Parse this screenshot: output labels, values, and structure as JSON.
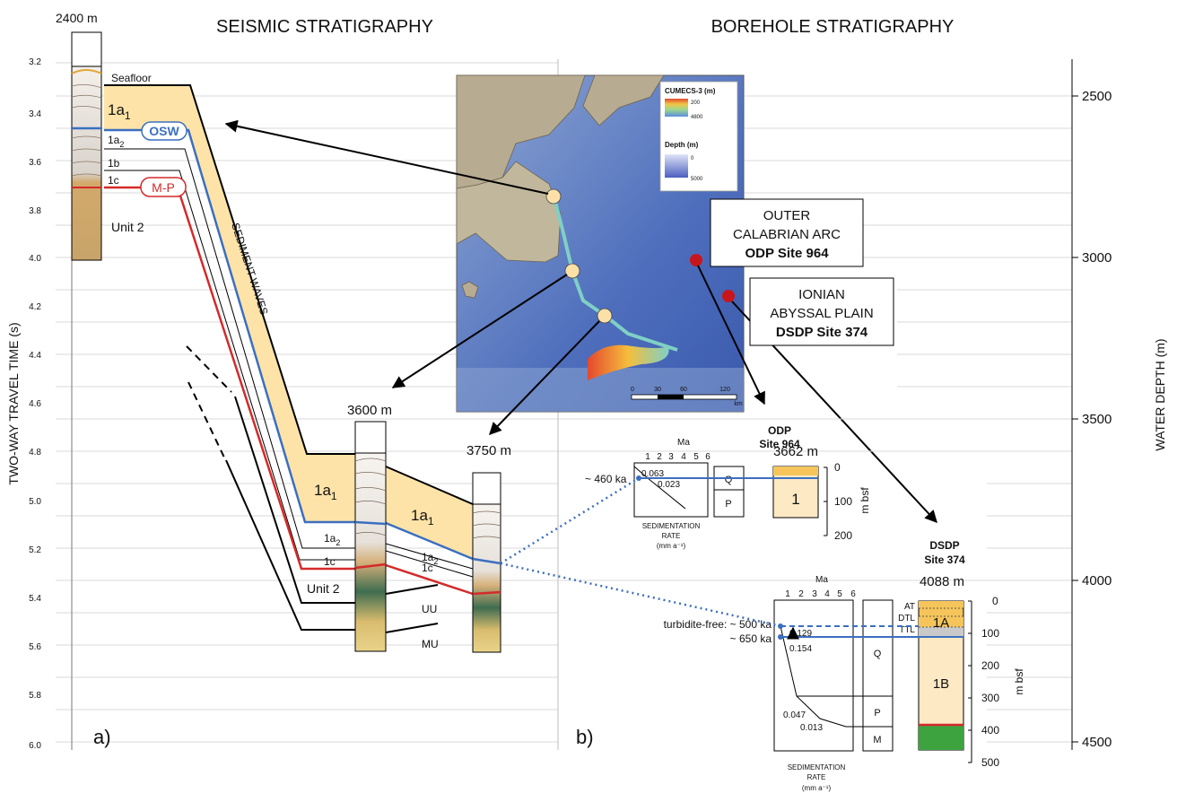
{
  "left": {
    "title": "SEISMIC STRATIGRAPHY",
    "depth_top": "2400 m",
    "depth_mid": "3600 m",
    "depth_right": "3750 m",
    "axis_label": "TWO-WAY TRAVEL TIME (s)",
    "ticks": [
      "3.2",
      "3.4",
      "3.6",
      "3.8",
      "4.0",
      "4.2",
      "4.4",
      "4.6",
      "4.8",
      "5.0",
      "5.2",
      "5.4",
      "5.6",
      "5.8",
      "6.0"
    ],
    "seafloor": "Seafloor",
    "unit_1a1": "1a",
    "sub1": "1",
    "unit_1a2": "1a",
    "sub2": "2",
    "unit_1b": "1b",
    "unit_1c": "1c",
    "osw": "OSW",
    "mp": "M-P",
    "unit2": "Unit 2",
    "sediment_waves": "SEDIMENT WAVES",
    "uu": "UU",
    "mu": "MU",
    "panel": "a)"
  },
  "right": {
    "title": "BOREHOLE STRATIGRAPHY",
    "axis_label": "WATER DEPTH (m)",
    "ticks": [
      "2500",
      "3000",
      "3500",
      "4000",
      "4500"
    ],
    "panel": "b)",
    "odp_label": [
      "ODP",
      "Site 964"
    ],
    "odp_depth": "3662 m",
    "odp_box_title": [
      "OUTER",
      "CALABRIAN ARC",
      "ODP Site 964"
    ],
    "dsdp_box_title": [
      "IONIAN",
      "ABYSSAL PLAIN",
      "DSDP Site 374"
    ],
    "dsdp_label": [
      "DSDP",
      "Site 374"
    ],
    "dsdp_depth": "4088 m",
    "ma": "Ma",
    "ma_ticks": [
      "1",
      "2",
      "3",
      "4",
      "5",
      "6"
    ],
    "sedrate": [
      "SEDIMENTATION",
      "RATE",
      "(mm a⁻¹)"
    ],
    "odp_age": "~ 460 ka",
    "odp_rates": [
      "0.063",
      "0.023"
    ],
    "odp_q": "Q",
    "odp_p": "P",
    "odp_unit": "1",
    "odp_mbsf_ticks": [
      "0",
      "100",
      "200"
    ],
    "mbsf": "m bsf",
    "dsdp_age1": "turbidite-free: ~ 500 ka",
    "dsdp_age2": "~ 650 ka",
    "dsdp_rates": [
      "0.129",
      "0.154",
      "0.047",
      "0.013"
    ],
    "dsdp_q": "Q",
    "dsdp_p": "P",
    "dsdp_m": "M",
    "dsdp_1a": "1A",
    "dsdp_1b": "1B",
    "dsdp_layers": [
      "AT",
      "DTL",
      "TTL"
    ],
    "dsdp_mbsf_ticks": [
      "0",
      "100",
      "200",
      "300",
      "400",
      "500"
    ]
  },
  "map": {
    "legend_title1": "CUMECS-3 (m)",
    "legend_v1": [
      "200",
      "4800"
    ],
    "legend_title2": "Depth (m)",
    "legend_v2": [
      "0",
      "5000"
    ],
    "scale": [
      "0",
      "30",
      "60",
      "120"
    ],
    "scale_unit": "km"
  },
  "colors": {
    "unit1_fill": "#fde3a7",
    "blue_line": "#3b6fc0",
    "red_line": "#d42a2a",
    "site_red": "#c8161d",
    "site_dot": "#fbe0a8",
    "green": "#3da33f"
  }
}
